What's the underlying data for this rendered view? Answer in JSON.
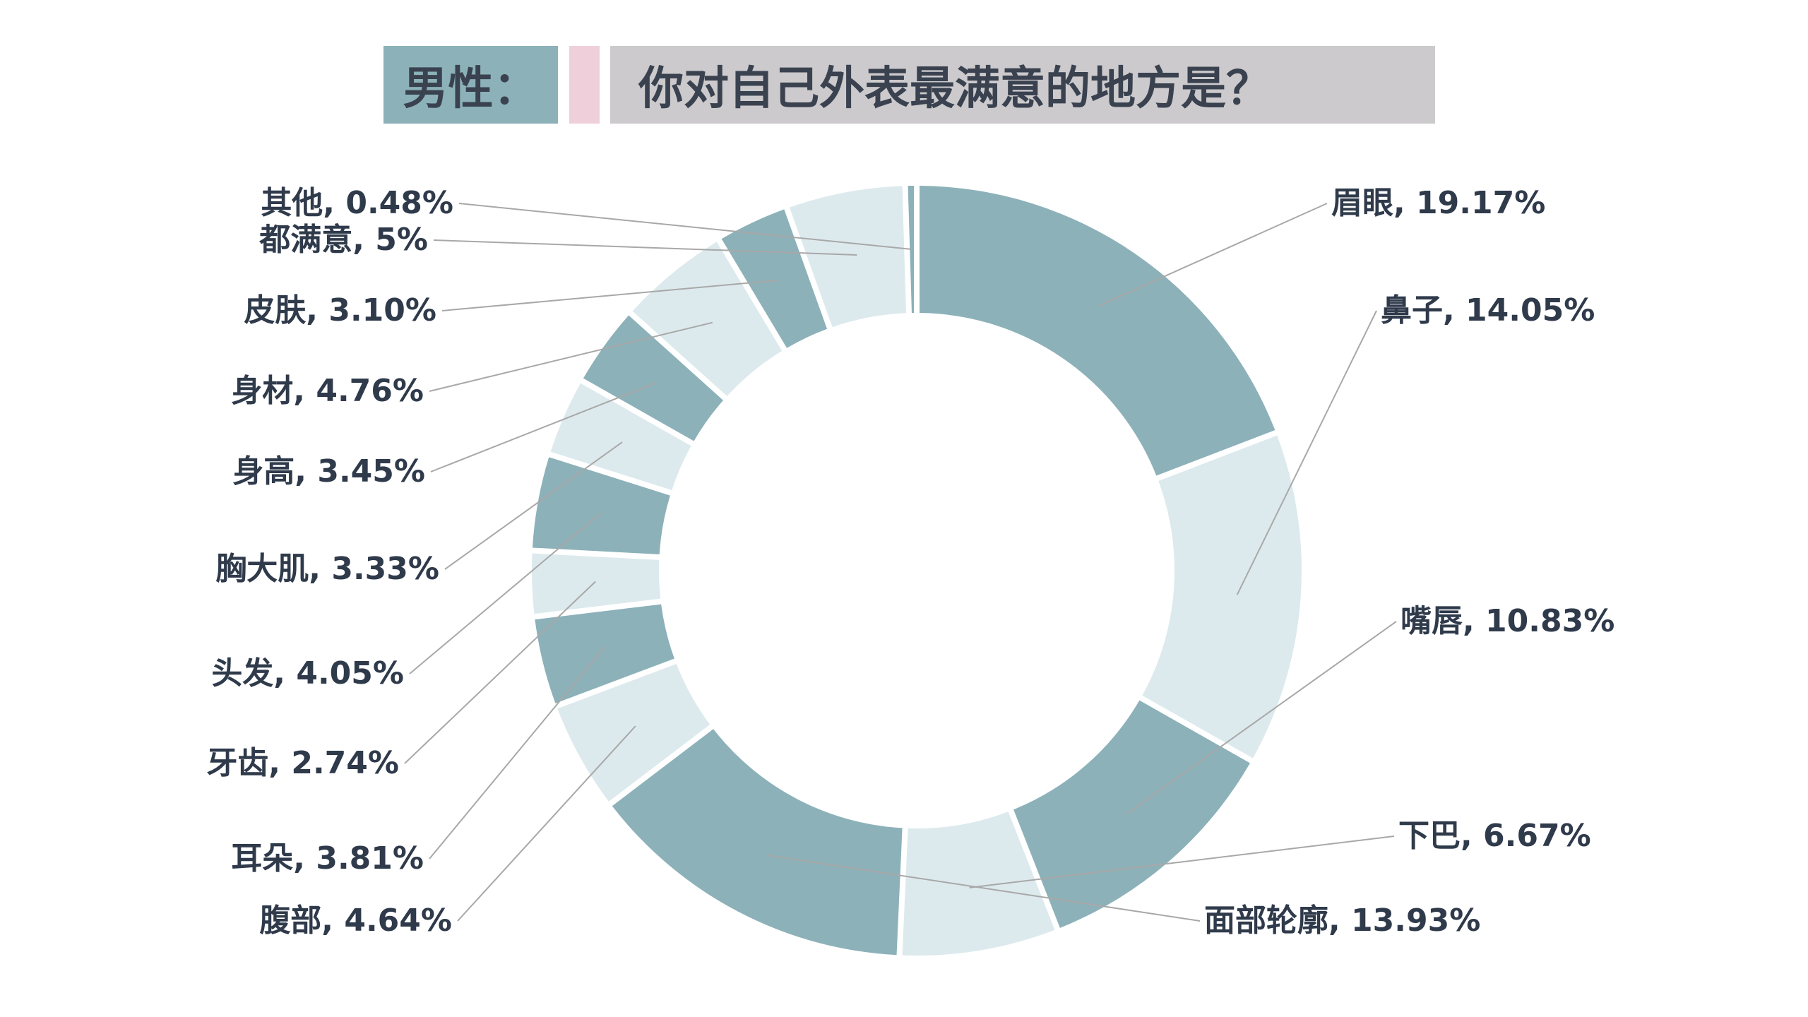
{
  "header": {
    "left": "男性：",
    "right": "你对自己外表最满意的地方是？"
  },
  "colors": {
    "dark": "#8cb1b9",
    "light": "#ddeaed",
    "text": "#2f3a4b",
    "leader": "#a8a8a8"
  },
  "chart_data": {
    "type": "pie",
    "style": "donut",
    "slices": [
      {
        "label": "眉眼, 19.17%",
        "value": 19.17,
        "shade": "dark"
      },
      {
        "label": "鼻子, 14.05%",
        "value": 14.05,
        "shade": "light"
      },
      {
        "label": "嘴唇, 10.83%",
        "value": 10.83,
        "shade": "dark"
      },
      {
        "label": "下巴, 6.67%",
        "value": 6.67,
        "shade": "light"
      },
      {
        "label": "面部轮廓, 13.93%",
        "value": 13.93,
        "shade": "dark"
      },
      {
        "label": "腹部, 4.64%",
        "value": 4.64,
        "shade": "light"
      },
      {
        "label": "耳朵, 3.81%",
        "value": 3.81,
        "shade": "dark"
      },
      {
        "label": "牙齿, 2.74%",
        "value": 2.74,
        "shade": "light"
      },
      {
        "label": "头发, 4.05%",
        "value": 4.05,
        "shade": "dark"
      },
      {
        "label": "胸大肌, 3.33%",
        "value": 3.33,
        "shade": "light"
      },
      {
        "label": "身高, 3.45%",
        "value": 3.45,
        "shade": "dark"
      },
      {
        "label": "身材, 4.76%",
        "value": 4.76,
        "shade": "light"
      },
      {
        "label": "皮肤, 3.10%",
        "value": 3.1,
        "shade": "dark"
      },
      {
        "label": "都满意, 5%",
        "value": 5.0,
        "shade": "light"
      },
      {
        "label": "其他, 0.48%",
        "value": 0.48,
        "shade": "dark"
      }
    ]
  }
}
